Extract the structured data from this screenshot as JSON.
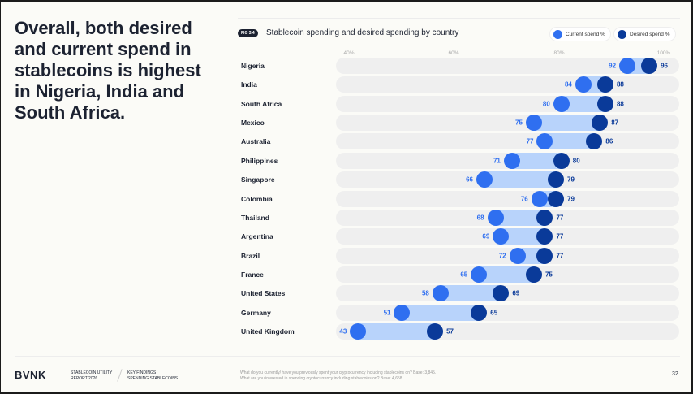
{
  "heading": "Overall, both desired and current spend in stablecoins is highest in Nigeria, India and South Africa.",
  "figure": {
    "badge": "FIG 3.4",
    "title": "Stablecoin spending and desired spending by country"
  },
  "colors": {
    "current": "#2f6ff0",
    "desired": "#0a3a99",
    "range": "#b8d3fb",
    "track": "#efefef"
  },
  "chart_data": {
    "type": "dumbbell",
    "title": "Stablecoin spending and desired spending by country",
    "legend": [
      "Current spend %",
      "Desired spend %"
    ],
    "legend_position": "top-right",
    "x_ticks": [
      "40%",
      "60%",
      "80%",
      "100%"
    ],
    "xlim": [
      40,
      100
    ],
    "categories": [
      "Nigeria",
      "India",
      "South Africa",
      "Mexico",
      "Australia",
      "Philippines",
      "Singapore",
      "Colombia",
      "Thailand",
      "Argentina",
      "Brazil",
      "France",
      "United States",
      "Germany",
      "United Kingdom"
    ],
    "series": [
      {
        "name": "Current spend %",
        "values": [
          92,
          84,
          80,
          75,
          77,
          71,
          66,
          76,
          68,
          69,
          72,
          65,
          58,
          51,
          43
        ]
      },
      {
        "name": "Desired spend %",
        "values": [
          96,
          88,
          88,
          87,
          86,
          80,
          79,
          79,
          77,
          77,
          77,
          75,
          69,
          65,
          57
        ]
      }
    ]
  },
  "footer": {
    "logo": "BVNK",
    "report_line1": "STABLECOIN UTILITY",
    "report_line2": "REPORT 2026",
    "section_line1": "KEY FINDINGS",
    "section_line2": "SPENDING STABLECOINS",
    "note1": "What do you currently/ have you previously spent your cryptocurrency including stablecoins on? Base: 3,845.",
    "note2": "What are you interested in spending cryptocurrency including stablecoins on? Base: 4,658.",
    "page": "32"
  }
}
